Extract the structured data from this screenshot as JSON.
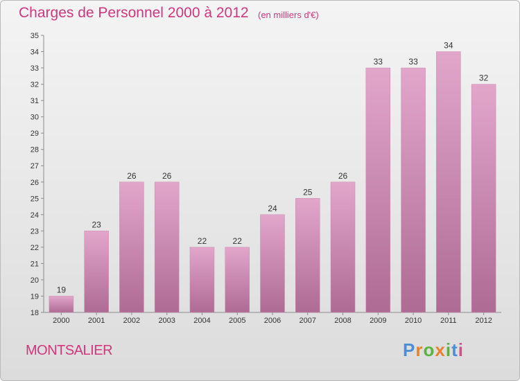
{
  "header": {
    "title": "Charges de Personnel 2000 à 2012",
    "subtitle": "(en milliers d'€)"
  },
  "commune": "MONTSALIER",
  "logo": {
    "letters": [
      "P",
      "r",
      "o",
      "x",
      "i",
      "t",
      "i"
    ],
    "colors": [
      "#4a8fd6",
      "#e8812b",
      "#5bb33f",
      "#e8812b",
      "#5bb33f",
      "#4a8fd6",
      "#d44e8c"
    ]
  },
  "colors": {
    "accent": "#d0367e",
    "bar_top": "#e2a6cb",
    "bar_bottom": "#ae6b94"
  },
  "chart_data": {
    "type": "bar",
    "categories": [
      "2000",
      "2001",
      "2002",
      "2003",
      "2004",
      "2005",
      "2006",
      "2007",
      "2008",
      "2009",
      "2010",
      "2011",
      "2012"
    ],
    "values": [
      19,
      23,
      26,
      26,
      22,
      22,
      24,
      25,
      26,
      33,
      33,
      34,
      32
    ],
    "title": "Charges de Personnel 2000 à 2012",
    "subtitle": "(en milliers d'€)",
    "ylim": [
      18,
      35
    ],
    "yticks": [
      18,
      19,
      20,
      21,
      22,
      23,
      24,
      25,
      26,
      27,
      28,
      29,
      30,
      31,
      32,
      33,
      34,
      35
    ],
    "grid": false,
    "legend": "none"
  }
}
